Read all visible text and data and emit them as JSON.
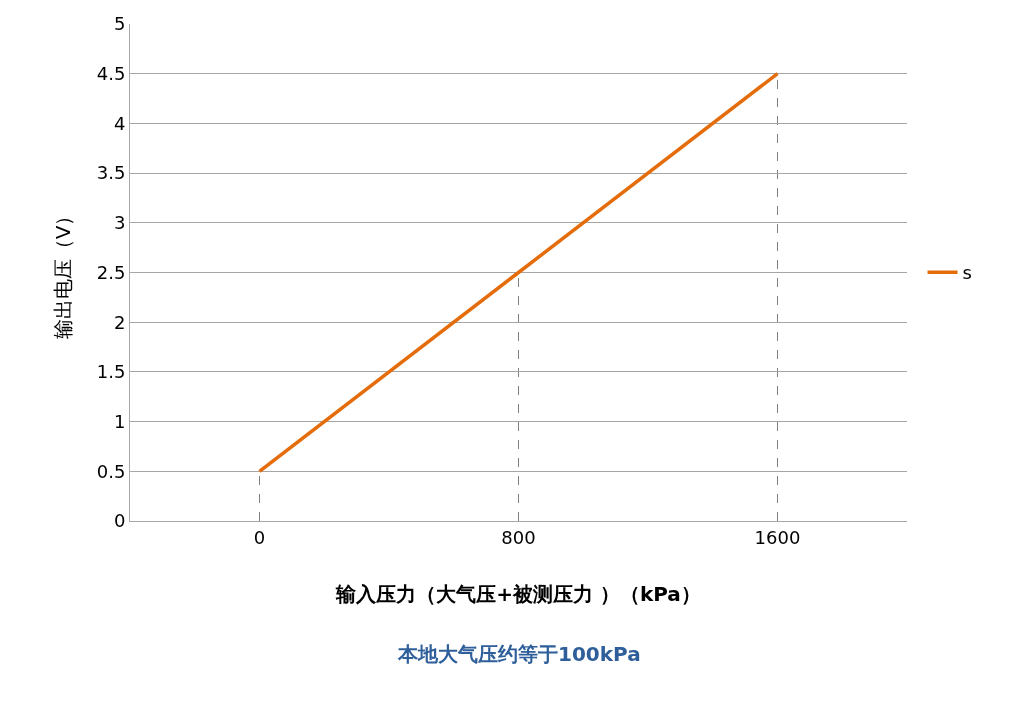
{
  "chart_data": {
    "type": "line",
    "categories": [
      "0",
      "800",
      "1600"
    ],
    "series": [
      {
        "name": "s",
        "color": "#e46c0a",
        "values": [
          0.5,
          2.5,
          4.5
        ],
        "errors": [
          [
            0.5,
            0
          ],
          [
            2.5,
            0
          ],
          [
            4.5,
            0
          ]
        ]
      }
    ],
    "xlabel": "输入压力（大气压+被测压力 ）（kPa）",
    "ylabel": "输出电压（V）",
    "annotations": [
      "本地大气压约等于100kPa"
    ],
    "ylim": [
      0,
      5
    ],
    "yticks": [
      0,
      0.5,
      1,
      1.5,
      2,
      2.5,
      3,
      3.5,
      4,
      4.5,
      5
    ],
    "grid": "y",
    "legend": "right",
    "marker": "none",
    "line_style": "solid"
  }
}
